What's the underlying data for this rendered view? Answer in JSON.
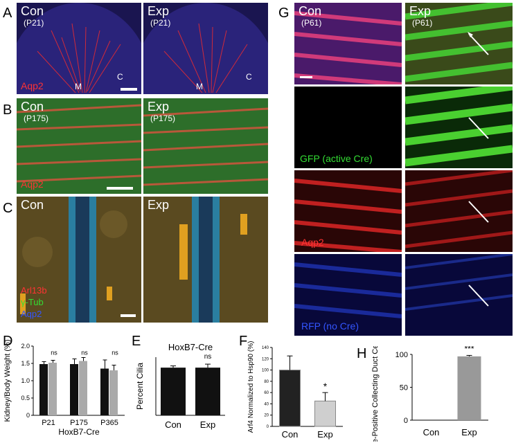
{
  "panels": {
    "A": {
      "letter": "A",
      "left": "Con",
      "left_age": "(P21)",
      "right": "Exp",
      "right_age": "(P21)",
      "stain": "Aqp2",
      "m": "M",
      "c": "C"
    },
    "B": {
      "letter": "B",
      "left": "Con",
      "left_age": "(P175)",
      "right": "Exp",
      "right_age": "(P175)",
      "stain": "Aqp2"
    },
    "C": {
      "letter": "C",
      "left": "Con",
      "right": "Exp",
      "stain1": "Arl13b",
      "stain2": "γ-Tub",
      "stain3": "Aqp2"
    },
    "G": {
      "letter": "G",
      "left": "Con",
      "left_age": "(P61)",
      "right": "Exp",
      "right_age": "(P61)",
      "gfp": "GFP (active Cre)",
      "aqp2": "Aqp2",
      "rfp": "RFP (no Cre)"
    },
    "D": {
      "letter": "D"
    },
    "E": {
      "letter": "E"
    },
    "F": {
      "letter": "F"
    },
    "H": {
      "letter": "H"
    }
  },
  "chart_data": [
    {
      "id": "D",
      "type": "bar",
      "ylabel": "Kidney/Body Weight (%)",
      "xlabel": "HoxB7-Cre",
      "categories": [
        "P21",
        "P175",
        "P365"
      ],
      "series": [
        {
          "values": [
            1.48,
            1.48,
            1.35
          ],
          "color": "#111111"
        },
        {
          "values": [
            1.52,
            1.57,
            1.3
          ],
          "color": "#aaaaaa"
        }
      ],
      "errors": [
        [
          0.07,
          0.15,
          0.25
        ],
        [
          0.07,
          0.1,
          0.15
        ]
      ],
      "ylim": [
        0,
        2.0
      ],
      "yticks": [
        "0",
        "0.5",
        "1.0",
        "1.5",
        "2.0"
      ],
      "annotations": [
        "ns",
        "ns",
        "ns"
      ]
    },
    {
      "id": "E",
      "type": "bar",
      "title": "HoxB7-Cre",
      "ylabel": "Percent Cilia",
      "categories": [
        "Con",
        "Exp"
      ],
      "values": [
        82,
        82
      ],
      "errors": [
        3,
        6
      ],
      "colors": [
        "#111111",
        "#111111"
      ],
      "ylim": [
        0,
        100
      ],
      "annotation": "ns"
    },
    {
      "id": "F",
      "type": "bar",
      "ylabel": "Arf4 Normalized to Hsp90 (%)",
      "categories": [
        "Con",
        "Exp"
      ],
      "values": [
        100,
        45
      ],
      "errors": [
        25,
        15
      ],
      "colors": [
        "#222222",
        "#cfcfcf"
      ],
      "ylim": [
        0,
        140
      ],
      "yticks": [
        "0",
        "20",
        "40",
        "60",
        "80",
        "100",
        "120",
        "140"
      ],
      "annotation": "*"
    },
    {
      "id": "H",
      "type": "bar",
      "ylabel": "Cre-Positive Collecting Duct Cells (%)",
      "categories": [
        "Con",
        "Exp"
      ],
      "values": [
        0,
        97
      ],
      "errors": [
        0,
        1.5
      ],
      "colors": [
        "#999999",
        "#999999"
      ],
      "ylim": [
        0,
        100
      ],
      "yticks": [
        "0",
        "50",
        "100"
      ],
      "annotation": "***"
    }
  ]
}
